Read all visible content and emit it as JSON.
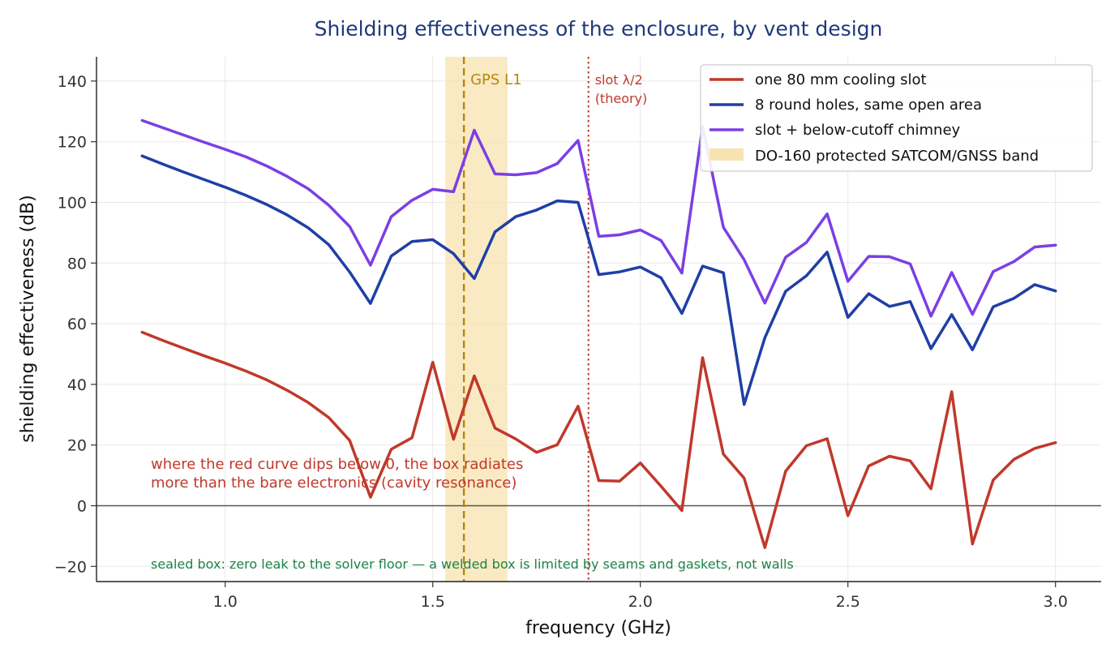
{
  "chart_data": {
    "type": "line",
    "title": "Shielding effectiveness of the enclosure, by vent design",
    "xlabel": "frequency (GHz)",
    "ylabel": "shielding effectiveness (dB)",
    "xlim": [
      0.69,
      3.11
    ],
    "ylim": [
      -25,
      148
    ],
    "xticks": [
      1.0,
      1.5,
      2.0,
      2.5,
      3.0
    ],
    "xtick_labels": [
      "1.0",
      "1.5",
      "2.0",
      "2.5",
      "3.0"
    ],
    "yticks": [
      -20,
      0,
      20,
      40,
      60,
      80,
      100,
      120,
      140
    ],
    "ytick_labels": [
      "−20",
      "0",
      "20",
      "40",
      "60",
      "80",
      "100",
      "120",
      "140"
    ],
    "grid": true,
    "legend_position": "top-right",
    "x": [
      0.8,
      0.85,
      0.9,
      0.95,
      1.0,
      1.05,
      1.1,
      1.15,
      1.2,
      1.25,
      1.3,
      1.35,
      1.4,
      1.45,
      1.5,
      1.55,
      1.6,
      1.65,
      1.7,
      1.75,
      1.8,
      1.85,
      1.9,
      1.95,
      2.0,
      2.05,
      2.1,
      2.15,
      2.2,
      2.25,
      2.3,
      2.35,
      2.4,
      2.45,
      2.5,
      2.55,
      2.6,
      2.65,
      2.7,
      2.75,
      2.8,
      2.85,
      2.9,
      2.95,
      3.0
    ],
    "series": [
      {
        "name": "one 80 mm cooling slot",
        "color": "#c0392b",
        "values": [
          57.2,
          54.5,
          51.9,
          49.4,
          47.0,
          44.4,
          41.5,
          38.0,
          34.0,
          29.0,
          21.5,
          2.8,
          18.6,
          22.4,
          47.3,
          21.9,
          42.8,
          25.6,
          22.0,
          17.6,
          20.1,
          32.8,
          8.3,
          8.1,
          14.1,
          6.4,
          -1.6,
          48.8,
          17.0,
          9.1,
          -13.8,
          11.4,
          19.8,
          22.1,
          -3.3,
          13.1,
          16.3,
          14.8,
          5.6,
          37.6,
          -12.6,
          8.5,
          15.3,
          18.9,
          20.8
        ]
      },
      {
        "name": "8 round holes, same open area",
        "color": "#1f3fa6",
        "values": [
          115.3,
          112.6,
          110.0,
          107.5,
          105.0,
          102.3,
          99.3,
          95.8,
          91.6,
          86.0,
          77.0,
          66.7,
          82.3,
          87.1,
          87.7,
          83.1,
          74.9,
          90.3,
          95.3,
          97.5,
          100.5,
          100.0,
          76.2,
          77.1,
          78.7,
          75.1,
          63.4,
          79.0,
          76.8,
          33.4,
          55.4,
          70.7,
          75.8,
          83.6,
          62.1,
          69.9,
          65.7,
          67.3,
          51.8,
          63.0,
          51.4,
          65.6,
          68.4,
          72.9,
          70.8
        ]
      },
      {
        "name": "slot + below-cutoff chimney",
        "color": "#7b3fe4",
        "values": [
          127.0,
          124.6,
          122.2,
          119.8,
          117.5,
          115.0,
          112.0,
          108.5,
          104.5,
          99.0,
          92.0,
          79.3,
          95.3,
          100.7,
          104.3,
          103.5,
          123.8,
          109.4,
          109.1,
          109.8,
          112.8,
          120.4,
          88.8,
          89.3,
          90.9,
          87.4,
          76.7,
          125.0,
          91.8,
          81.1,
          66.8,
          81.9,
          86.8,
          96.2,
          74.0,
          82.2,
          82.1,
          79.7,
          62.5,
          76.9,
          63.1,
          77.2,
          80.5,
          85.3,
          85.9
        ]
      }
    ],
    "band": {
      "label": "DO-160 protected SATCOM/GNSS band",
      "x0": 1.53,
      "x1": 1.68,
      "color": "#f7e3b0"
    },
    "vlines": [
      {
        "x": 1.575,
        "label": "GPS L1",
        "color": "#b8860b",
        "style": "dashed"
      },
      {
        "x": 1.875,
        "label_line1": "slot λ/2",
        "label_line2": "(theory)",
        "color": "#c0392b",
        "style": "dotted"
      }
    ],
    "hline": {
      "y": 0,
      "color": "#555555"
    },
    "annotations": {
      "red_note_line1": "where the red curve dips below 0, the box radiates",
      "red_note_line2": "more than the bare electronics (cavity resonance)",
      "green_note": "sealed box: zero leak to the solver floor — a welded box is limited by seams and gaskets, not walls",
      "red_note_color": "#c0392b",
      "green_note_color": "#1e8449"
    }
  }
}
